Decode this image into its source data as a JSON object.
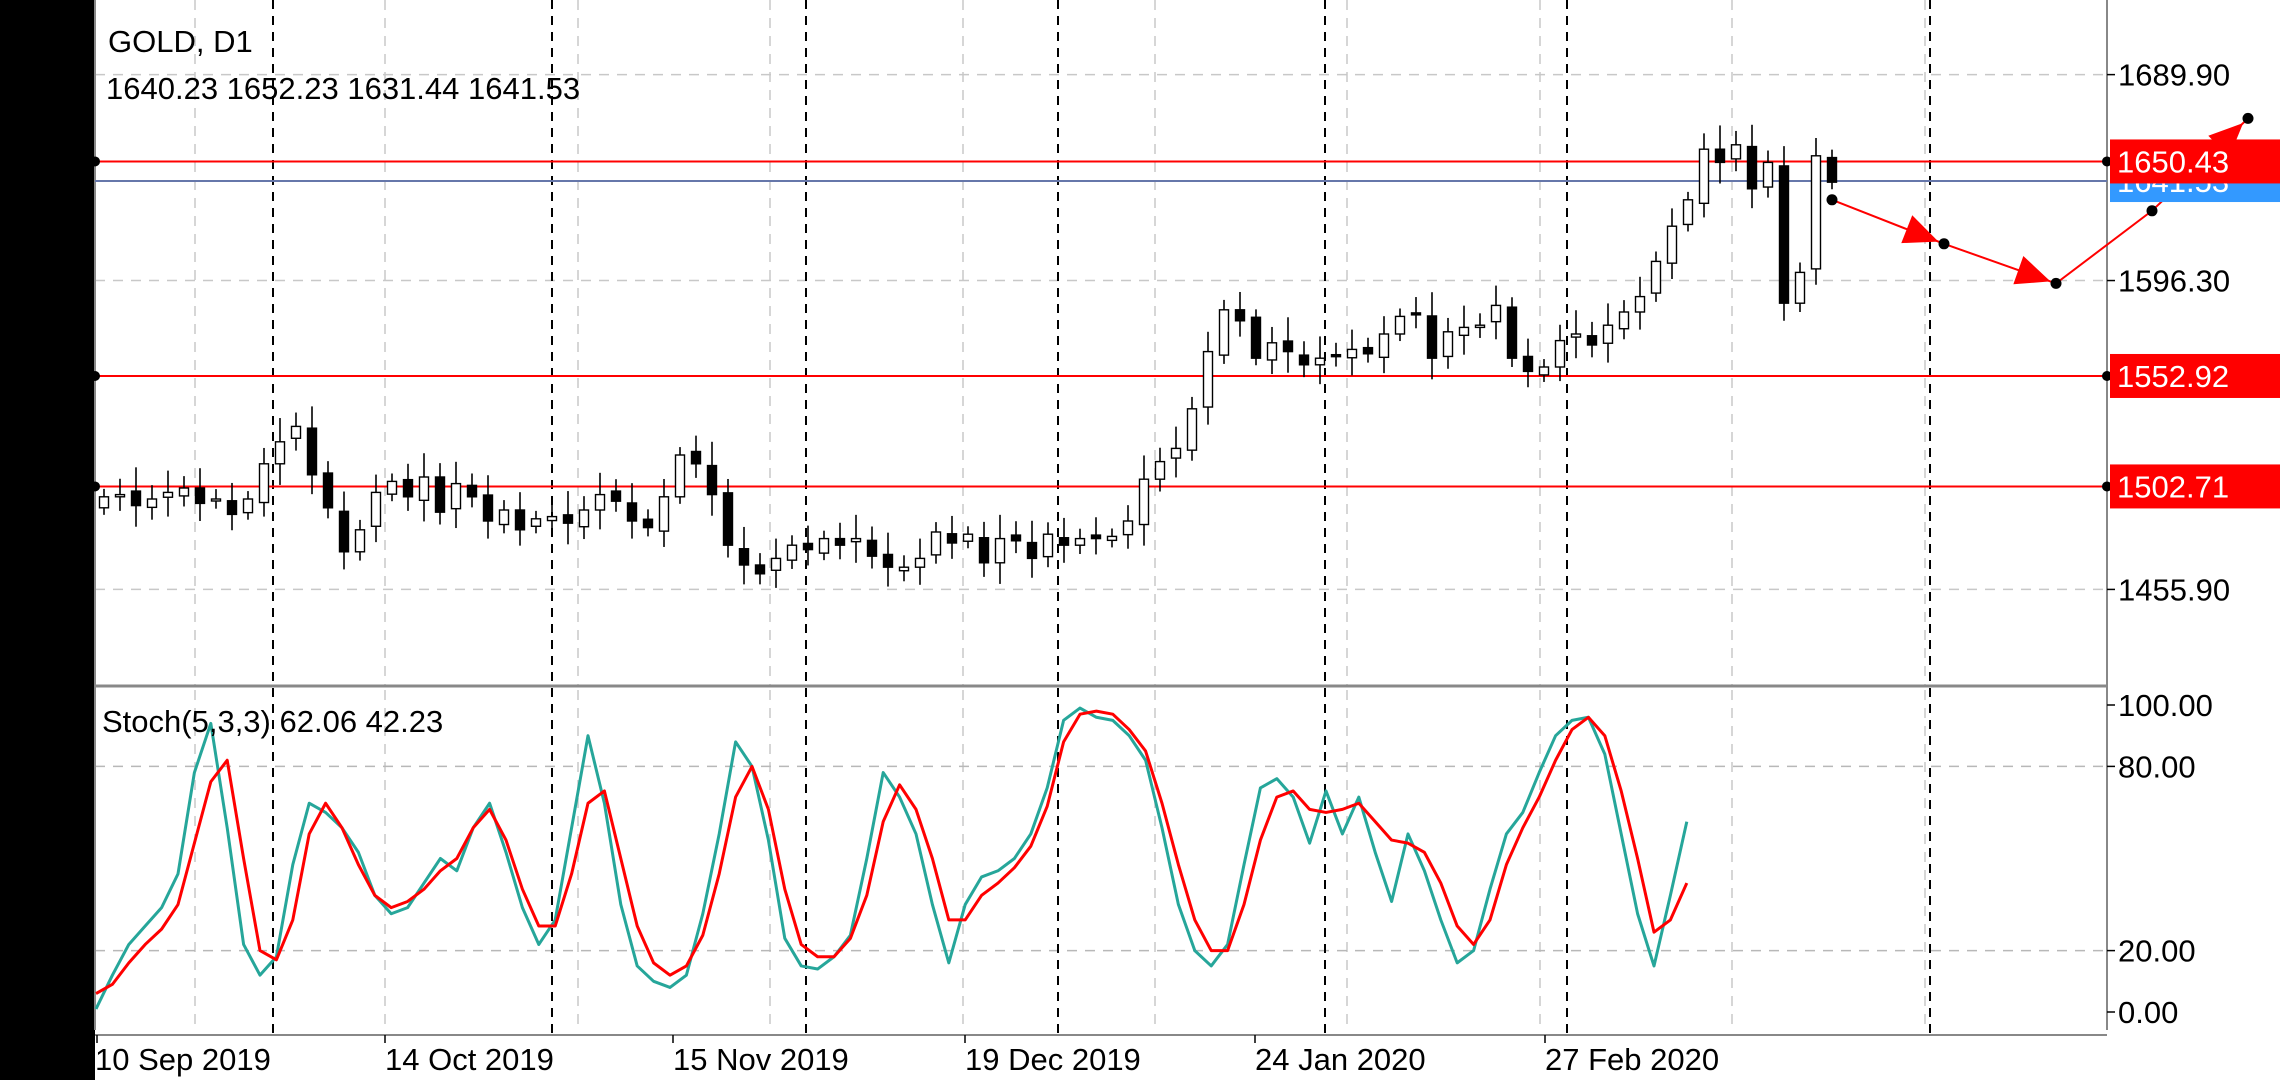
{
  "chart_data": [
    {
      "type": "candlestick",
      "title": "GOLD, D1",
      "ohlc_readout": "1640.23 1652.23 1631.44 1641.53",
      "ylim": [
        1412,
        1722
      ],
      "y_ticks": [
        {
          "value": 1689.9,
          "label": "1689.90"
        },
        {
          "value": 1596.3,
          "label": "1596.30"
        },
        {
          "value": 1455.9,
          "label": "1455.90"
        }
      ],
      "x_labels": [
        "10 Sep 2019",
        "14 Oct 2019",
        "15 Nov 2019",
        "19 Dec 2019",
        "24 Jan 2020",
        "27 Feb 2020"
      ],
      "horizontal_levels": [
        {
          "value": 1650.43,
          "label": "1650.43",
          "color": "#ff0000"
        },
        {
          "value": 1552.92,
          "label": "1552.92",
          "color": "#ff0000"
        },
        {
          "value": 1502.71,
          "label": "1502.71",
          "color": "#ff0000"
        }
      ],
      "bid_line": {
        "value": 1641.53,
        "label": "1641.53",
        "color": "#3399ff"
      },
      "close_series": [
        1498,
        1499,
        1494,
        1497,
        1500,
        1502,
        1495,
        1497,
        1490,
        1497,
        1513,
        1523,
        1530,
        1508,
        1493,
        1473,
        1483,
        1500,
        1505,
        1498,
        1507,
        1491,
        1504,
        1498,
        1487,
        1492,
        1483,
        1488,
        1489,
        1486,
        1492,
        1499,
        1496,
        1487,
        1484,
        1498,
        1517,
        1513,
        1499,
        1476,
        1467,
        1463,
        1470,
        1476,
        1474,
        1479,
        1476,
        1479,
        1471,
        1466,
        1466,
        1470,
        1482,
        1477,
        1481,
        1468,
        1479,
        1478,
        1470,
        1481,
        1476,
        1479,
        1479,
        1480,
        1487,
        1506,
        1514,
        1520,
        1538,
        1564,
        1583,
        1578,
        1561,
        1568,
        1564,
        1558,
        1561,
        1562,
        1565,
        1563,
        1572,
        1580,
        1581,
        1561,
        1573,
        1575,
        1576,
        1585,
        1561,
        1555,
        1557,
        1569,
        1572,
        1567,
        1576,
        1582,
        1589,
        1605,
        1621,
        1633,
        1656,
        1650,
        1658,
        1638,
        1650,
        1586,
        1600,
        1653,
        1641
      ],
      "annotation_path": [
        {
          "x": 108,
          "y": 1633
        },
        {
          "x": 115,
          "y": 1613
        },
        {
          "x": 122,
          "y": 1595
        },
        {
          "x": 128,
          "y": 1628
        },
        {
          "x": 134,
          "y": 1670
        }
      ]
    },
    {
      "type": "line",
      "title": "Stoch(5,3,3) 62.06 42.23",
      "ylim": [
        0,
        100
      ],
      "y_ticks": [
        {
          "value": 100,
          "label": "100.00"
        },
        {
          "value": 80,
          "label": "80.00"
        },
        {
          "value": 20,
          "label": "20.00"
        },
        {
          "value": 0,
          "label": "0.00"
        }
      ],
      "levels": [
        80,
        20
      ],
      "series": [
        {
          "color": "#26a69a",
          "values": [
            1,
            12,
            22,
            28,
            34,
            45,
            78,
            94,
            60,
            22,
            12,
            18,
            48,
            68,
            65,
            60,
            52,
            38,
            32,
            34,
            42,
            50,
            46,
            60,
            68,
            52,
            34,
            22,
            30,
            60,
            90,
            68,
            35,
            15,
            10,
            8,
            12,
            32,
            58,
            88,
            80,
            56,
            24,
            15,
            14,
            18,
            25,
            50,
            78,
            70,
            58,
            35,
            16,
            35,
            44,
            46,
            50,
            58,
            73,
            95,
            99,
            96,
            95,
            90,
            82,
            60,
            35,
            20,
            15,
            22,
            48,
            73,
            76,
            70,
            55,
            72,
            58,
            70,
            52,
            36,
            58,
            46,
            30,
            16,
            20,
            40,
            58,
            65,
            78,
            90,
            95,
            96,
            84,
            58,
            32,
            15,
            38,
            62
          ]
        },
        {
          "color": "#ff0000",
          "values": [
            6,
            9,
            16,
            22,
            27,
            35,
            55,
            75,
            82,
            50,
            20,
            17,
            30,
            58,
            68,
            60,
            48,
            38,
            34,
            36,
            40,
            46,
            50,
            60,
            66,
            56,
            40,
            28,
            28,
            45,
            68,
            72,
            50,
            28,
            16,
            12,
            15,
            25,
            45,
            70,
            80,
            66,
            40,
            22,
            18,
            18,
            24,
            38,
            62,
            74,
            66,
            50,
            30,
            30,
            38,
            42,
            47,
            54,
            67,
            88,
            97,
            98,
            97,
            92,
            85,
            68,
            48,
            30,
            20,
            20,
            35,
            56,
            70,
            72,
            66,
            65,
            66,
            68,
            62,
            56,
            55,
            52,
            42,
            28,
            22,
            30,
            48,
            60,
            70,
            82,
            92,
            96,
            90,
            72,
            50,
            26,
            30,
            42
          ]
        }
      ]
    }
  ]
}
